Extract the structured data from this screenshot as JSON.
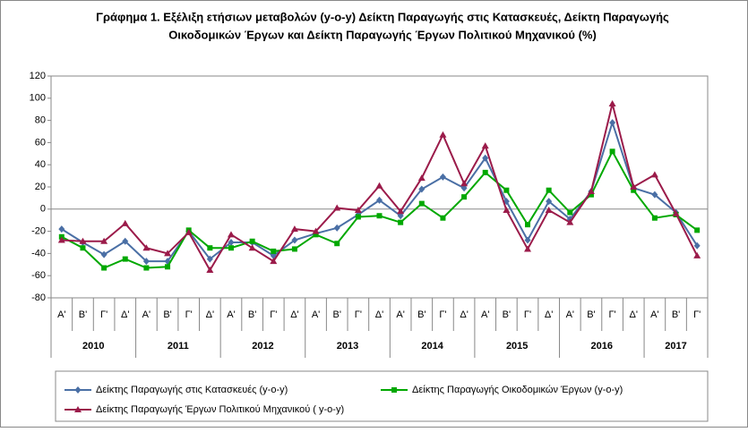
{
  "chart_data": {
    "type": "line",
    "title": [
      "Γράφημα 1. Εξέλιξη ετήσιων μεταβολών (y-o-y) Δείκτη Παραγωγής στις Κατασκευές, Δείκτη Παραγωγής",
      "Οικοδομικών Έργων και  Δείκτη Παραγωγής Έργων Πολιτικού Μηχανικού (%)"
    ],
    "categories": [
      "Α'",
      "Β'",
      "Γ'",
      "Δ'",
      "Α'",
      "Β'",
      "Γ'",
      "Δ'",
      "Α'",
      "Β'",
      "Γ'",
      "Δ'",
      "Α'",
      "Β'",
      "Γ'",
      "Δ'",
      "Α'",
      "Β'",
      "Γ'",
      "Δ'",
      "Α'",
      "Β'",
      "Γ'",
      "Δ'",
      "Α'",
      "Β'",
      "Γ'",
      "Δ'",
      "Α'",
      "Β'",
      "Γ'"
    ],
    "years": [
      "2010",
      "2011",
      "2012",
      "2013",
      "2014",
      "2015",
      "2016",
      "2017"
    ],
    "ylim": [
      -80,
      120
    ],
    "yticks": [
      -80,
      -60,
      -40,
      -20,
      0,
      20,
      40,
      60,
      80,
      100,
      120
    ],
    "series": [
      {
        "name": "Δείκτης Παραγωγής  στις Κατασκευές (y-o-y)",
        "color": "#4a6fa5",
        "marker": "diamond",
        "values": [
          -18,
          -30,
          -41,
          -29,
          -47,
          -47,
          -20,
          -45,
          -30,
          -30,
          -42,
          -28,
          -22,
          -17,
          -5,
          8,
          -6,
          18,
          29,
          19,
          46,
          7,
          -28,
          7,
          -9,
          16,
          78,
          19,
          13,
          -3,
          -33
        ]
      },
      {
        "name": "Δείκτης Παραγωγής Οικοδομικών Έργων  (y-o-y)",
        "color": "#00a800",
        "marker": "square",
        "values": [
          -25,
          -35,
          -53,
          -45,
          -53,
          -52,
          -19,
          -35,
          -35,
          -29,
          -38,
          -36,
          -23,
          -31,
          -7,
          -6,
          -12,
          5,
          -8,
          11,
          33,
          17,
          -14,
          17,
          -3,
          13,
          52,
          17,
          -8,
          -5,
          -19
        ]
      },
      {
        "name": "Δείκτης Παραγωγής Έργων Πολιτικού Μηχανικού ( y-o-y)",
        "color": "#9b1b4a",
        "marker": "triangle",
        "values": [
          -28,
          -29,
          -29,
          -13,
          -35,
          -40,
          -21,
          -55,
          -23,
          -35,
          -47,
          -18,
          -20,
          1,
          -1,
          21,
          -2,
          28,
          67,
          23,
          57,
          -1,
          -36,
          -1,
          -12,
          16,
          95,
          20,
          31,
          -4,
          -42
        ]
      }
    ]
  }
}
